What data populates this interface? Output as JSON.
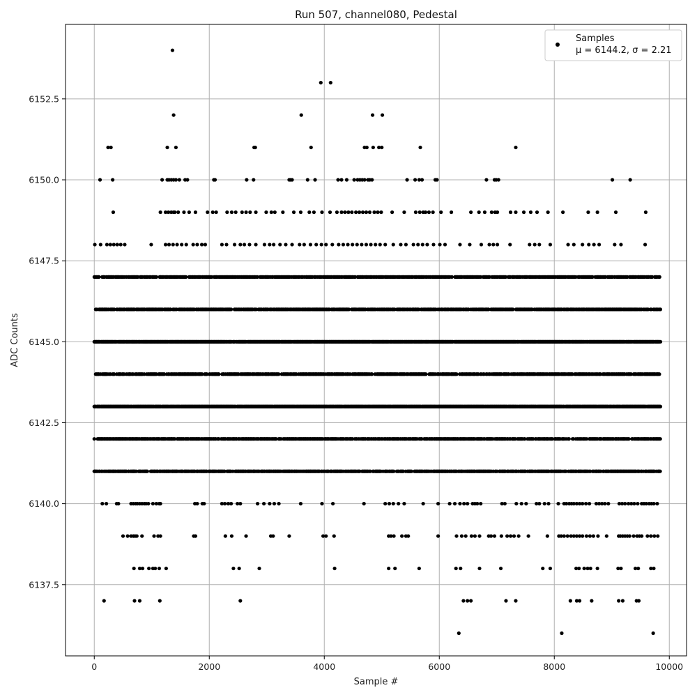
{
  "chart_data": {
    "type": "scatter",
    "title": "Run 507, channel080, Pedestal",
    "xlabel": "Sample #",
    "ylabel": "ADC Counts",
    "xlim": [
      -500,
      10300
    ],
    "ylim": [
      6135.3,
      6154.8
    ],
    "grid": true,
    "legend_position": "top-right",
    "x_ticks": [
      0,
      2000,
      4000,
      6000,
      8000,
      10000
    ],
    "x_tick_labels": [
      "0",
      "2000",
      "4000",
      "6000",
      "8000",
      "10000"
    ],
    "y_ticks": [
      6137.5,
      6140.0,
      6142.5,
      6145.0,
      6147.5,
      6150.0,
      6152.5
    ],
    "y_tick_labels": [
      "6137.5",
      "6140.0",
      "6142.5",
      "6145.0",
      "6147.5",
      "6150.0",
      "6152.5"
    ],
    "series": [
      {
        "name": "Samples",
        "legend_line2": "μ = 6144.2, σ = 2.21",
        "color": "#000000",
        "marker": "circle",
        "n_samples": 9850,
        "levels": [
          {
            "y": 6154,
            "x": [
              1360
            ]
          },
          {
            "y": 6153,
            "x": [
              3940,
              4110
            ]
          },
          {
            "y": 6152,
            "x": [
              1380,
              3600,
              4840,
              5010
            ]
          },
          {
            "y": 6151,
            "x": [
              240,
              290,
              1270,
              1420,
              2780,
              2800,
              3770,
              4700,
              4740,
              4850,
              4950,
              5000,
              5670,
              7330
            ]
          },
          {
            "y": 6150,
            "x": [
              100,
              320,
              1180,
              1270,
              1300,
              1340,
              1380,
              1420,
              1480,
              1580,
              1620,
              2080,
              2100,
              2650,
              2770,
              3390,
              3410,
              3440,
              3710,
              3840,
              4240,
              4300,
              4390,
              4520,
              4580,
              4620,
              4660,
              4700,
              4760,
              4790,
              4830,
              5440,
              5580,
              5650,
              5700,
              5930,
              5960,
              6820,
              6960,
              6990,
              7030,
              9010,
              9320
            ]
          },
          {
            "y": 6149,
            "x": [
              330,
              1150,
              1240,
              1290,
              1340,
              1380,
              1400,
              1460,
              1560,
              1650,
              1760,
              1970,
              2060,
              2120,
              2310,
              2390,
              2460,
              2570,
              2640,
              2710,
              2810,
              2990,
              3080,
              3140,
              3280,
              3470,
              3590,
              3740,
              3820,
              3960,
              4100,
              4220,
              4300,
              4360,
              4420,
              4480,
              4550,
              4610,
              4670,
              4730,
              4790,
              4870,
              4930,
              4990,
              5180,
              5390,
              5590,
              5660,
              5720,
              5760,
              5820,
              5890,
              6030,
              6210,
              6550,
              6690,
              6790,
              6910,
              6970,
              7010,
              7240,
              7330,
              7470,
              7590,
              7700,
              7890,
              8150,
              8590,
              8750,
              9070,
              9590
            ]
          },
          {
            "y": 6148,
            "x": [
              10,
              110,
              220,
              280,
              340,
              400,
              460,
              530,
              990,
              1240,
              1300,
              1370,
              1440,
              1520,
              1600,
              1720,
              1790,
              1870,
              1930,
              2220,
              2300,
              2440,
              2540,
              2610,
              2700,
              2810,
              2960,
              3050,
              3120,
              3230,
              3330,
              3440,
              3570,
              3650,
              3760,
              3860,
              3950,
              4030,
              4140,
              4250,
              4330,
              4410,
              4490,
              4570,
              4650,
              4730,
              4810,
              4890,
              4970,
              5060,
              5200,
              5330,
              5420,
              5550,
              5630,
              5710,
              5790,
              5900,
              6010,
              6100,
              6360,
              6530,
              6730,
              6870,
              6940,
              7010,
              7230,
              7570,
              7660,
              7740,
              7930,
              8240,
              8340,
              8490,
              8600,
              8690,
              8780,
              9050,
              9160,
              9580
            ]
          },
          {
            "y": 6147,
            "x_range": [
              0,
              9850
            ],
            "density": "dense"
          },
          {
            "y": 6146,
            "x_range": [
              0,
              9850
            ],
            "density": "dense"
          },
          {
            "y": 6145,
            "x_range": [
              0,
              9850
            ],
            "density": "solid"
          },
          {
            "y": 6144,
            "x_range": [
              0,
              9850
            ],
            "density": "dense"
          },
          {
            "y": 6143,
            "x_range": [
              0,
              9850
            ],
            "density": "solid"
          },
          {
            "y": 6142,
            "x_range": [
              0,
              9850
            ],
            "density": "dense"
          },
          {
            "y": 6141,
            "x_range": [
              0,
              9850
            ],
            "density": "dense"
          },
          {
            "y": 6140,
            "x": [
              140,
              210,
              390,
              420,
              640,
              680,
              720,
              750,
              790,
              830,
              870,
              900,
              940,
              1020,
              1080,
              1130,
              1150,
              1750,
              1790,
              1880,
              1910,
              2220,
              2270,
              2330,
              2380,
              2490,
              2540,
              2840,
              2950,
              3050,
              3130,
              3210,
              3590,
              3960,
              4150,
              4690,
              5060,
              5130,
              5200,
              5290,
              5390,
              5720,
              5980,
              6180,
              6270,
              6360,
              6430,
              6490,
              6580,
              6620,
              6660,
              6720,
              7090,
              7140,
              7340,
              7430,
              7510,
              7690,
              7740,
              7830,
              7900,
              8070,
              8170,
              8210,
              8260,
              8300,
              8340,
              8390,
              8440,
              8490,
              8550,
              8610,
              8730,
              8780,
              8830,
              8880,
              8940,
              9130,
              9180,
              9230,
              9290,
              9340,
              9390,
              9450,
              9520,
              9560,
              9600,
              9650,
              9690,
              9730,
              9790
            ]
          },
          {
            "y": 6139,
            "x": [
              500,
              580,
              640,
              680,
              710,
              740,
              830,
              1040,
              1110,
              1150,
              1730,
              1760,
              2280,
              2390,
              2640,
              3070,
              3110,
              3390,
              3980,
              4030,
              4170,
              5120,
              5160,
              5210,
              5350,
              5420,
              5460,
              5980,
              6300,
              6390,
              6460,
              6560,
              6620,
              6700,
              6860,
              6900,
              6960,
              7080,
              7180,
              7240,
              7300,
              7380,
              7550,
              7880,
              8080,
              8120,
              8170,
              8230,
              8290,
              8340,
              8390,
              8440,
              8490,
              8560,
              8620,
              8680,
              8760,
              8910,
              9120,
              9150,
              9190,
              9230,
              9270,
              9310,
              9380,
              9440,
              9480,
              9520,
              9620,
              9680,
              9740,
              9800
            ]
          },
          {
            "y": 6138,
            "x": [
              690,
              790,
              840,
              950,
              1020,
              1060,
              1130,
              1250,
              2420,
              2520,
              2870,
              4180,
              5120,
              5230,
              5650,
              6290,
              6370,
              6700,
              7070,
              7800,
              7930,
              8380,
              8430,
              8520,
              8580,
              8630,
              8750,
              9110,
              9160,
              9410,
              9460,
              9680,
              9730
            ]
          },
          {
            "y": 6137,
            "x": [
              170,
              700,
              790,
              1140,
              2540,
              6420,
              6490,
              6550,
              7160,
              7330,
              8280,
              8390,
              8440,
              8650,
              9120,
              9190,
              9430,
              9470
            ]
          },
          {
            "y": 6136,
            "x": [
              6340,
              8130,
              9720
            ]
          }
        ]
      }
    ]
  }
}
